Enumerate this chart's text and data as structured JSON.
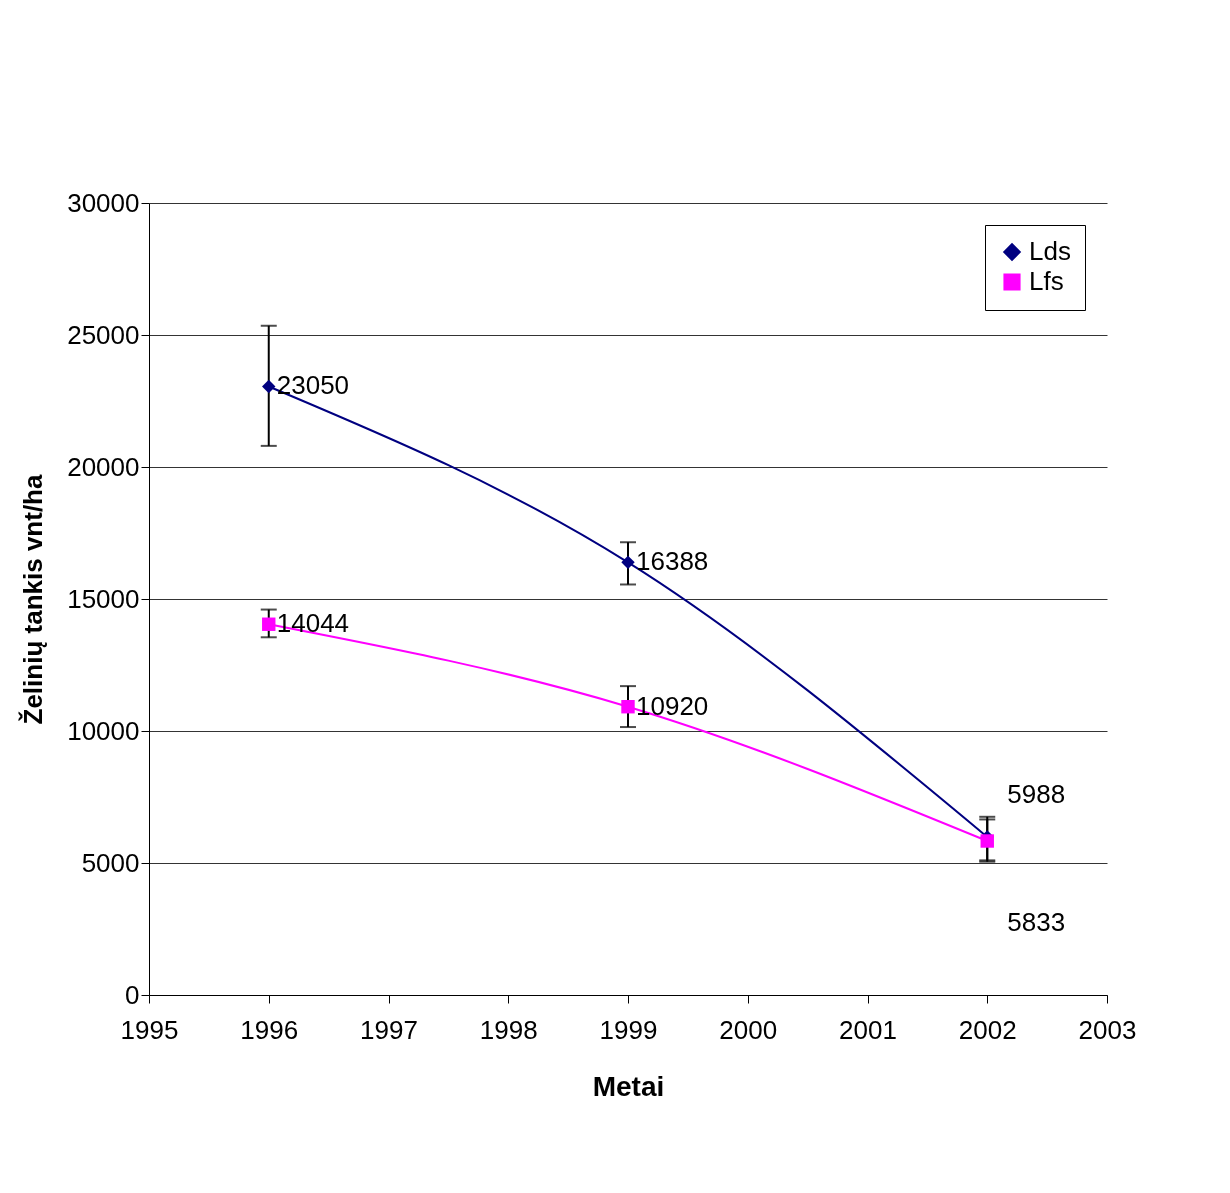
{
  "chart_data": {
    "type": "line",
    "xlabel": "Metai",
    "ylabel": "Želinių tankis vnt/ha",
    "x": [
      1996,
      1999,
      2002
    ],
    "series": [
      {
        "name": "Lds",
        "color": "#000080",
        "marker": "diamond",
        "values": [
          23050,
          16388,
          5988
        ],
        "errors": [
          [
            20800,
            25350
          ],
          [
            15550,
            17150
          ],
          [
            5100,
            6750
          ]
        ]
      },
      {
        "name": "Lfs",
        "color": "#ff00ff",
        "marker": "square",
        "values": [
          14044,
          10920,
          5833
        ],
        "errors": [
          [
            13550,
            14600
          ],
          [
            10150,
            11700
          ],
          [
            5050,
            6650
          ]
        ]
      }
    ],
    "xlim": [
      1995,
      2003
    ],
    "xticks": [
      1995,
      1996,
      1997,
      1998,
      1999,
      2000,
      2001,
      2002,
      2003
    ],
    "ylim": [
      0,
      30000
    ],
    "yticks": [
      0,
      5000,
      10000,
      15000,
      20000,
      25000,
      30000
    ],
    "grid": "y",
    "legend": "top right",
    "data_labels": true,
    "line_style": "solid"
  }
}
